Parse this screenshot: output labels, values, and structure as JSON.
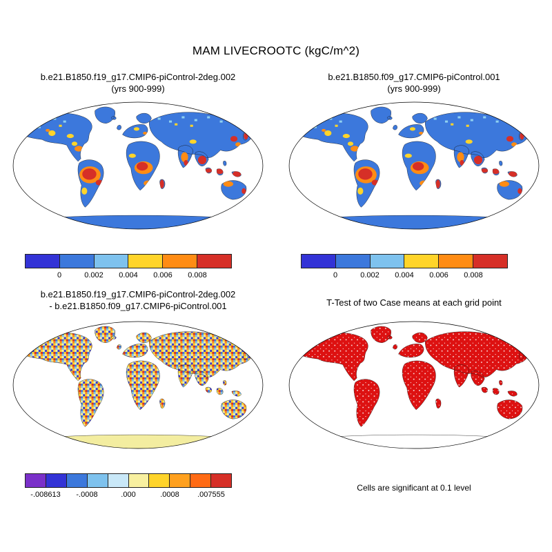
{
  "figure": {
    "title": "MAM LIVECROOTC (kgC/m^2)"
  },
  "panels": {
    "top_left": {
      "title": "b.e21.B1850.f19_g17.CMIP6-piControl-2deg.002",
      "subtitle": "(yrs 900-999)"
    },
    "top_right": {
      "title": "b.e21.B1850.f09_g17.CMIP6-piControl.001",
      "subtitle": "(yrs 900-999)"
    },
    "bottom_left": {
      "title": "b.e21.B1850.f19_g17.CMIP6-piControl-2deg.002",
      "subtitle": "- b.e21.B1850.f09_g17.CMIP6-piControl.001"
    },
    "bottom_right": {
      "title": "T-Test of two Case means at each grid point",
      "caption": "Cells are significant at 0.1 level"
    }
  },
  "colorbars": {
    "mean": {
      "colors": [
        "#3333d6",
        "#3c78dc",
        "#7ec2ee",
        "#ffd42a",
        "#ff8c14",
        "#d62f27"
      ],
      "labels": [
        "0",
        "0.002",
        "0.004",
        "0.006",
        "0.008"
      ]
    },
    "diff": {
      "colors": [
        "#7a30c9",
        "#3333d6",
        "#3c78dc",
        "#7ec2ee",
        "#c9e8f8",
        "#f8f0a0",
        "#ffd42a",
        "#ffa01e",
        "#ff6a14",
        "#d62f27"
      ],
      "labels": [
        "-.008613",
        "-.0008",
        ".000",
        ".0008",
        ".007555"
      ]
    }
  },
  "colors": {
    "land_blue": "#3c78dc",
    "ttest_red": "#dd1111",
    "diff_antarctica": "#f3eda0",
    "ocean": "#ffffff"
  },
  "chart_data": [
    {
      "type": "heatmap",
      "panel": "top-left",
      "title": "b.e21.B1850.f19_g17.CMIP6-piControl-2deg.002 (yrs 900-999)",
      "variable": "LIVECROOTC",
      "season": "MAM",
      "units": "kgC/m^2",
      "projection": "robinson",
      "levels": [
        0,
        0.002,
        0.004,
        0.006,
        0.008
      ],
      "palette": [
        "#3333d6",
        "#3c78dc",
        "#7ec2ee",
        "#ffd42a",
        "#ff8c14",
        "#d62f27"
      ],
      "legend_position": "bottom"
    },
    {
      "type": "heatmap",
      "panel": "top-right",
      "title": "b.e21.B1850.f09_g17.CMIP6-piControl.001 (yrs 900-999)",
      "variable": "LIVECROOTC",
      "season": "MAM",
      "units": "kgC/m^2",
      "projection": "robinson",
      "levels": [
        0,
        0.002,
        0.004,
        0.006,
        0.008
      ],
      "palette": [
        "#3333d6",
        "#3c78dc",
        "#7ec2ee",
        "#ffd42a",
        "#ff8c14",
        "#d62f27"
      ],
      "legend_position": "bottom"
    },
    {
      "type": "heatmap",
      "panel": "bottom-left",
      "title": "b.e21.B1850.f19_g17.CMIP6-piControl-2deg.002 - b.e21.B1850.f09_g17.CMIP6-piControl.001",
      "variable": "LIVECROOTC difference",
      "units": "kgC/m^2",
      "projection": "robinson",
      "levels": [
        -0.008613,
        -0.0008,
        0.0,
        0.0008,
        0.007555
      ],
      "min": -0.008613,
      "max": 0.007555,
      "palette": [
        "#7a30c9",
        "#3333d6",
        "#3c78dc",
        "#7ec2ee",
        "#c9e8f8",
        "#f8f0a0",
        "#ffd42a",
        "#ffa01e",
        "#ff6a14",
        "#d62f27"
      ],
      "legend_position": "bottom"
    },
    {
      "type": "heatmap",
      "panel": "bottom-right",
      "title": "T-Test of two Case means at each grid point",
      "note": "Cells are significant at 0.1 level",
      "significance_level": 0.1,
      "significant_color": "#dd1111",
      "projection": "robinson"
    }
  ]
}
